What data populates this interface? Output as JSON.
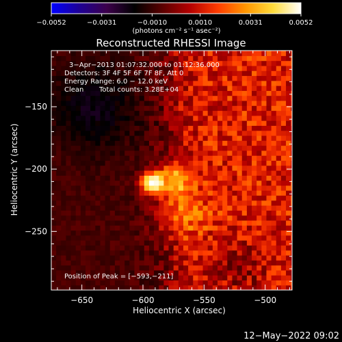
{
  "chart_data": {
    "type": "heatmap",
    "title": "Reconstructed RHESSI Image",
    "colorbar": {
      "tick_labels": [
        "−0.0052",
        "−0.0031",
        "−0.0010",
        "0.0010",
        "0.0031",
        "0.0052"
      ],
      "ticks": [
        -0.0052,
        -0.0031,
        -0.001,
        0.001,
        0.0031,
        0.0052
      ],
      "range": [
        -0.0052,
        0.0052
      ],
      "unit_label": "(photons cm⁻² s⁻¹ asec⁻²)",
      "colormap": [
        "#0000ff",
        "#1e0096",
        "#3c004b",
        "#000000",
        "#5a0000",
        "#b40000",
        "#ff3c00",
        "#ff9600",
        "#ffdc3c",
        "#ffffff"
      ]
    },
    "xlabel": "Heliocentric X (arcsec)",
    "ylabel": "Heliocentric Y (arcsec)",
    "xlim": [
      -675,
      -478
    ],
    "ylim": [
      -297,
      -105
    ],
    "x_ticks": [
      -650,
      -600,
      -550,
      -500
    ],
    "x_tick_labels": [
      "−650",
      "−600",
      "−550",
      "−500"
    ],
    "y_ticks": [
      -150,
      -200,
      -250
    ],
    "y_tick_labels": [
      "−150",
      "−200",
      "−250"
    ],
    "annotations": {
      "time_range": "3−Apr−2013 01:07:32.000 to 01:12:36.000",
      "detectors": "Detectors: 3F 4F 5F 6F 7F 8F, Att 0",
      "energy": "Energy Range: 6.0 − 12.0 keV",
      "clean": "Clean",
      "counts": "Total counts: 3.28E+04",
      "peak": "Position of Peak = [−593,−211]"
    },
    "peak": {
      "x": -593,
      "y": -211,
      "value": 0.0052
    },
    "grid": false
  },
  "footer": {
    "date_stamp": "12−May−2022 09:02"
  }
}
